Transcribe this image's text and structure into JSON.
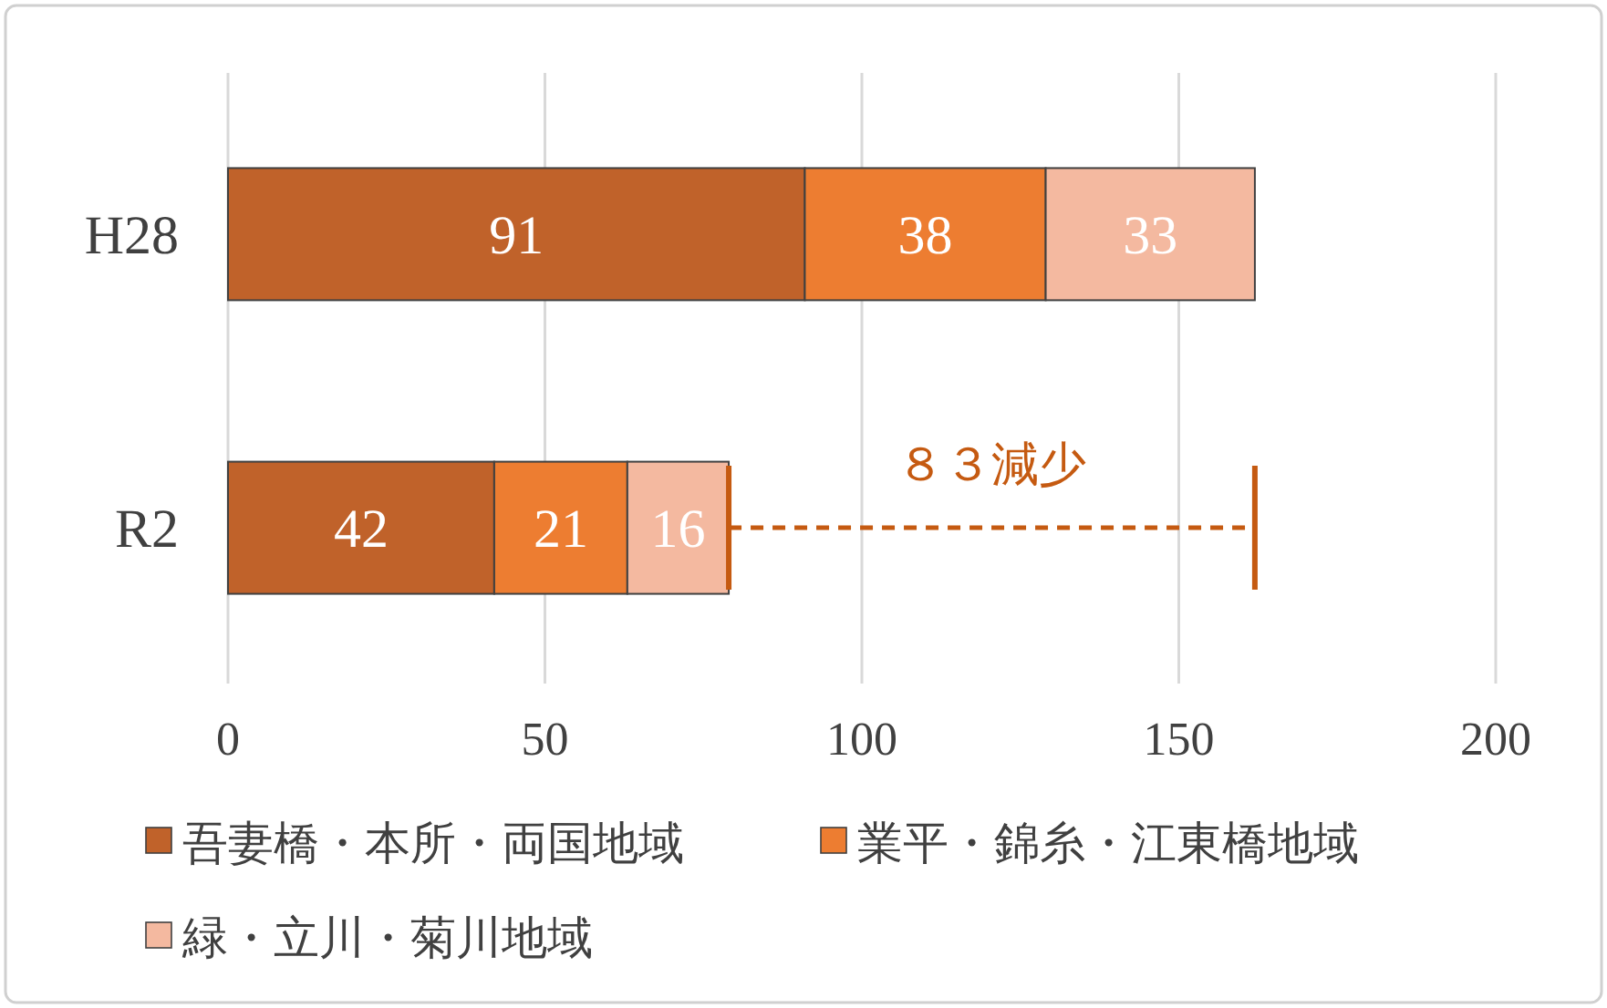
{
  "chart_data": {
    "type": "bar",
    "orientation": "horizontal",
    "stacked": true,
    "categories": [
      "H28",
      "R2"
    ],
    "series": [
      {
        "name": "吾妻橋・本所・両国地域",
        "color": "#c0622a",
        "values": [
          91,
          42
        ]
      },
      {
        "name": "業平・錦糸・江東橋地域",
        "color": "#ed7d31",
        "values": [
          38,
          21
        ]
      },
      {
        "name": "緑・立川・菊川地域",
        "color": "#f4b9a0",
        "values": [
          33,
          16
        ]
      }
    ],
    "xlim": [
      0,
      200
    ],
    "xticks": [
      0,
      50,
      100,
      150,
      200
    ],
    "grid": "x",
    "data_labels": true,
    "legend": "bottom",
    "annotations": [
      "８３減少"
    ]
  }
}
